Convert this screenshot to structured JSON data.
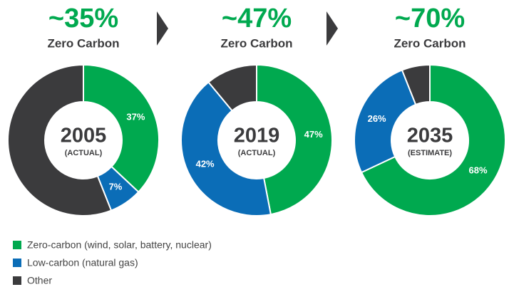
{
  "chart_data": [
    {
      "type": "pie",
      "title": "~35%",
      "subtitle": "Zero Carbon",
      "center_label": "2005",
      "center_sublabel": "(ACTUAL)",
      "values": [
        37,
        7,
        56
      ],
      "value_labels": [
        "37%",
        "7%",
        null
      ]
    },
    {
      "type": "pie",
      "title": "~47%",
      "subtitle": "Zero Carbon",
      "center_label": "2019",
      "center_sublabel": "(ACTUAL)",
      "values": [
        47,
        42,
        11
      ],
      "value_labels": [
        "47%",
        "42%",
        null
      ]
    },
    {
      "type": "pie",
      "title": "~70%",
      "subtitle": "Zero Carbon",
      "center_label": "2035",
      "center_sublabel": "(ESTIMATE)",
      "values": [
        68,
        26,
        6
      ],
      "value_labels": [
        "68%",
        "26%",
        null
      ]
    }
  ],
  "legend": {
    "categories": [
      "Zero-carbon (wind, solar, battery, nuclear)",
      "Low-carbon (natural gas)",
      "Other"
    ],
    "colors": [
      "#00a94f",
      "#0b6db7",
      "#3b3b3d"
    ]
  }
}
